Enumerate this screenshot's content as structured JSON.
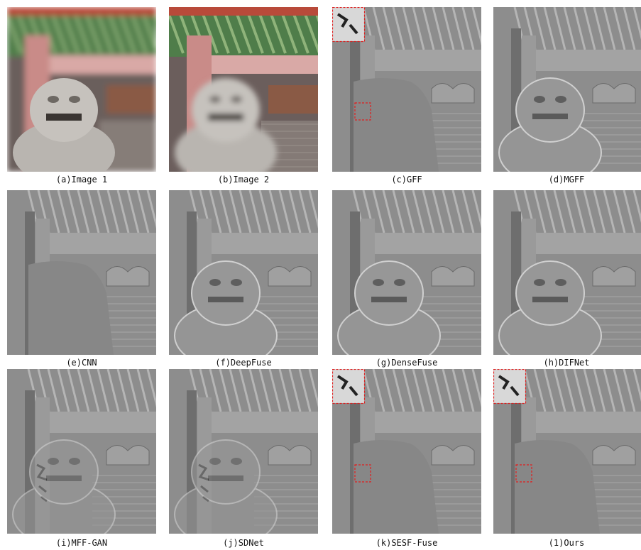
{
  "panels": [
    {
      "label": "(a)Image 1"
    },
    {
      "label": "(b)Image 2"
    },
    {
      "label": "(c)GFF"
    },
    {
      "label": "(d)MGFF"
    },
    {
      "label": "(e)CNN"
    },
    {
      "label": "(f)DeepFuse"
    },
    {
      "label": "(g)DenseFuse"
    },
    {
      "label": "(h)DIFNet"
    },
    {
      "label": "(i)MFF-GAN"
    },
    {
      "label": "(j)SDNet"
    },
    {
      "label": "(k)SESF-Fuse"
    },
    {
      "label": "(1)Ours"
    }
  ]
}
